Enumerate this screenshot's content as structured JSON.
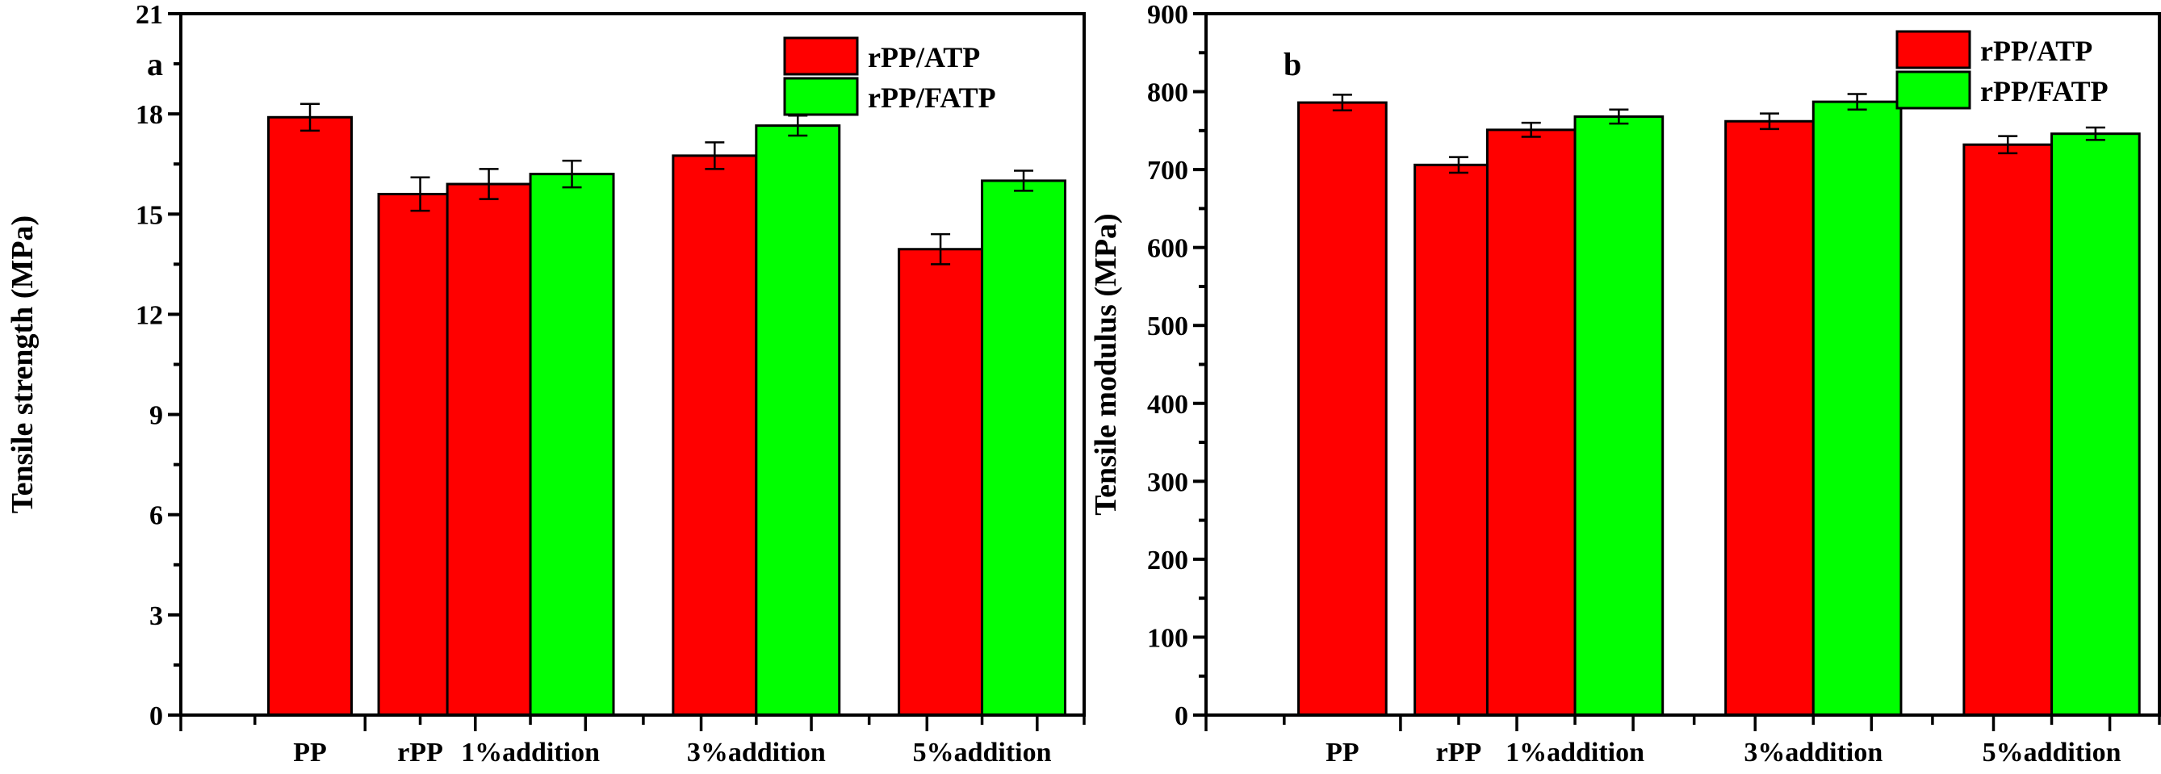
{
  "figure": {
    "colors": {
      "rPP/ATP": "#ff0000",
      "rPP/FATP": "#00ff00",
      "axis": "#000000"
    }
  },
  "chart_data": [
    {
      "type": "bar",
      "panel_label": "a",
      "title": "",
      "xlabel": "",
      "ylabel": "Tensile strength (MPa)",
      "ylim": [
        0,
        21
      ],
      "yticks": [
        0,
        3,
        6,
        9,
        12,
        15,
        18,
        21
      ],
      "grid": false,
      "legend_position": "top-right",
      "categories": [
        "PP",
        "rPP",
        "1%addition",
        "3%addition",
        "5%addition"
      ],
      "series": [
        {
          "name": "rPP/ATP",
          "color": "#ff0000",
          "values": [
            17.9,
            15.6,
            15.9,
            16.75,
            13.95
          ],
          "errors": [
            0.4,
            0.5,
            0.45,
            0.4,
            0.45
          ]
        },
        {
          "name": "rPP/FATP",
          "color": "#00ff00",
          "values": [
            null,
            null,
            16.2,
            17.65,
            16.0
          ],
          "errors": [
            null,
            null,
            0.4,
            0.3,
            0.3
          ]
        }
      ]
    },
    {
      "type": "bar",
      "panel_label": "b",
      "title": "",
      "xlabel": "",
      "ylabel": "Tensile modulus (MPa)",
      "ylim": [
        0,
        900
      ],
      "yticks": [
        0,
        100,
        200,
        300,
        400,
        500,
        600,
        700,
        800,
        900
      ],
      "grid": false,
      "legend_position": "top-right",
      "categories": [
        "PP",
        "rPP",
        "1%addition",
        "3%addition",
        "5%addition"
      ],
      "series": [
        {
          "name": "rPP/ATP",
          "color": "#ff0000",
          "values": [
            786,
            706,
            751,
            762,
            732
          ],
          "errors": [
            10,
            10,
            9,
            10,
            11
          ]
        },
        {
          "name": "rPP/FATP",
          "color": "#00ff00",
          "values": [
            null,
            null,
            768,
            787,
            746
          ],
          "errors": [
            null,
            null,
            9,
            10,
            8
          ]
        }
      ]
    }
  ]
}
